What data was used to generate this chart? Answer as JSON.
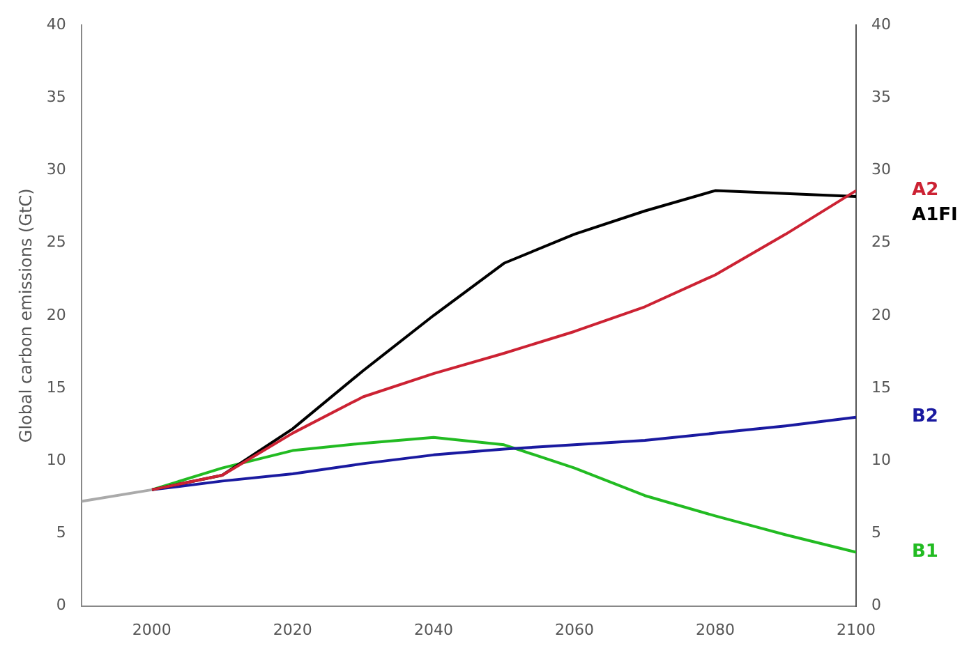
{
  "chart_data": {
    "type": "line",
    "ylabel": "Global carbon emissions (GtC)",
    "xlim": [
      1990,
      2100
    ],
    "xticks": [
      2000,
      2020,
      2040,
      2060,
      2080,
      2100
    ],
    "ylim": [
      0,
      40
    ],
    "yticks": [
      0,
      5,
      10,
      15,
      20,
      25,
      30,
      35,
      40
    ],
    "y2lim": [
      0,
      40
    ],
    "y2ticks": [
      0,
      5,
      10,
      15,
      20,
      25,
      30,
      35,
      40
    ],
    "grid": false,
    "legend": false,
    "marker": "none",
    "line_style": "solid",
    "series": [
      {
        "color": "#aaaaaa",
        "x": [
          1990,
          2000
        ],
        "values": [
          7.2,
          8
        ]
      },
      {
        "name": "A2",
        "color": "#cc2233",
        "x": [
          2000,
          2010,
          2020,
          2030,
          2040,
          2050,
          2060,
          2070,
          2080,
          2090,
          2100
        ],
        "values": [
          8,
          9,
          11.9,
          14.4,
          16,
          17.4,
          18.9,
          20.6,
          22.8,
          25.6,
          28.6
        ]
      },
      {
        "name": "A1FI",
        "color": "#000000",
        "x": [
          2000,
          2010,
          2020,
          2030,
          2040,
          2050,
          2060,
          2070,
          2080,
          2090,
          2100
        ],
        "values": [
          8,
          9,
          12.2,
          16.2,
          20,
          23.6,
          25.6,
          27.2,
          28.6,
          28.4,
          28.2
        ]
      },
      {
        "name": "B2",
        "color": "#1a1aa0",
        "x": [
          2000,
          2010,
          2020,
          2030,
          2040,
          2050,
          2060,
          2070,
          2080,
          2090,
          2100
        ],
        "values": [
          8,
          8.6,
          9.1,
          9.8,
          10.4,
          10.8,
          11.1,
          11.4,
          11.9,
          12.4,
          13
        ]
      },
      {
        "name": "B1",
        "color": "#22bb22",
        "x": [
          2000,
          2010,
          2020,
          2030,
          2040,
          2050,
          2060,
          2070,
          2080,
          2090,
          2100
        ],
        "values": [
          8,
          9.5,
          10.7,
          11.2,
          11.6,
          11.1,
          9.5,
          7.6,
          6.2,
          4.9,
          3.7
        ]
      }
    ]
  }
}
